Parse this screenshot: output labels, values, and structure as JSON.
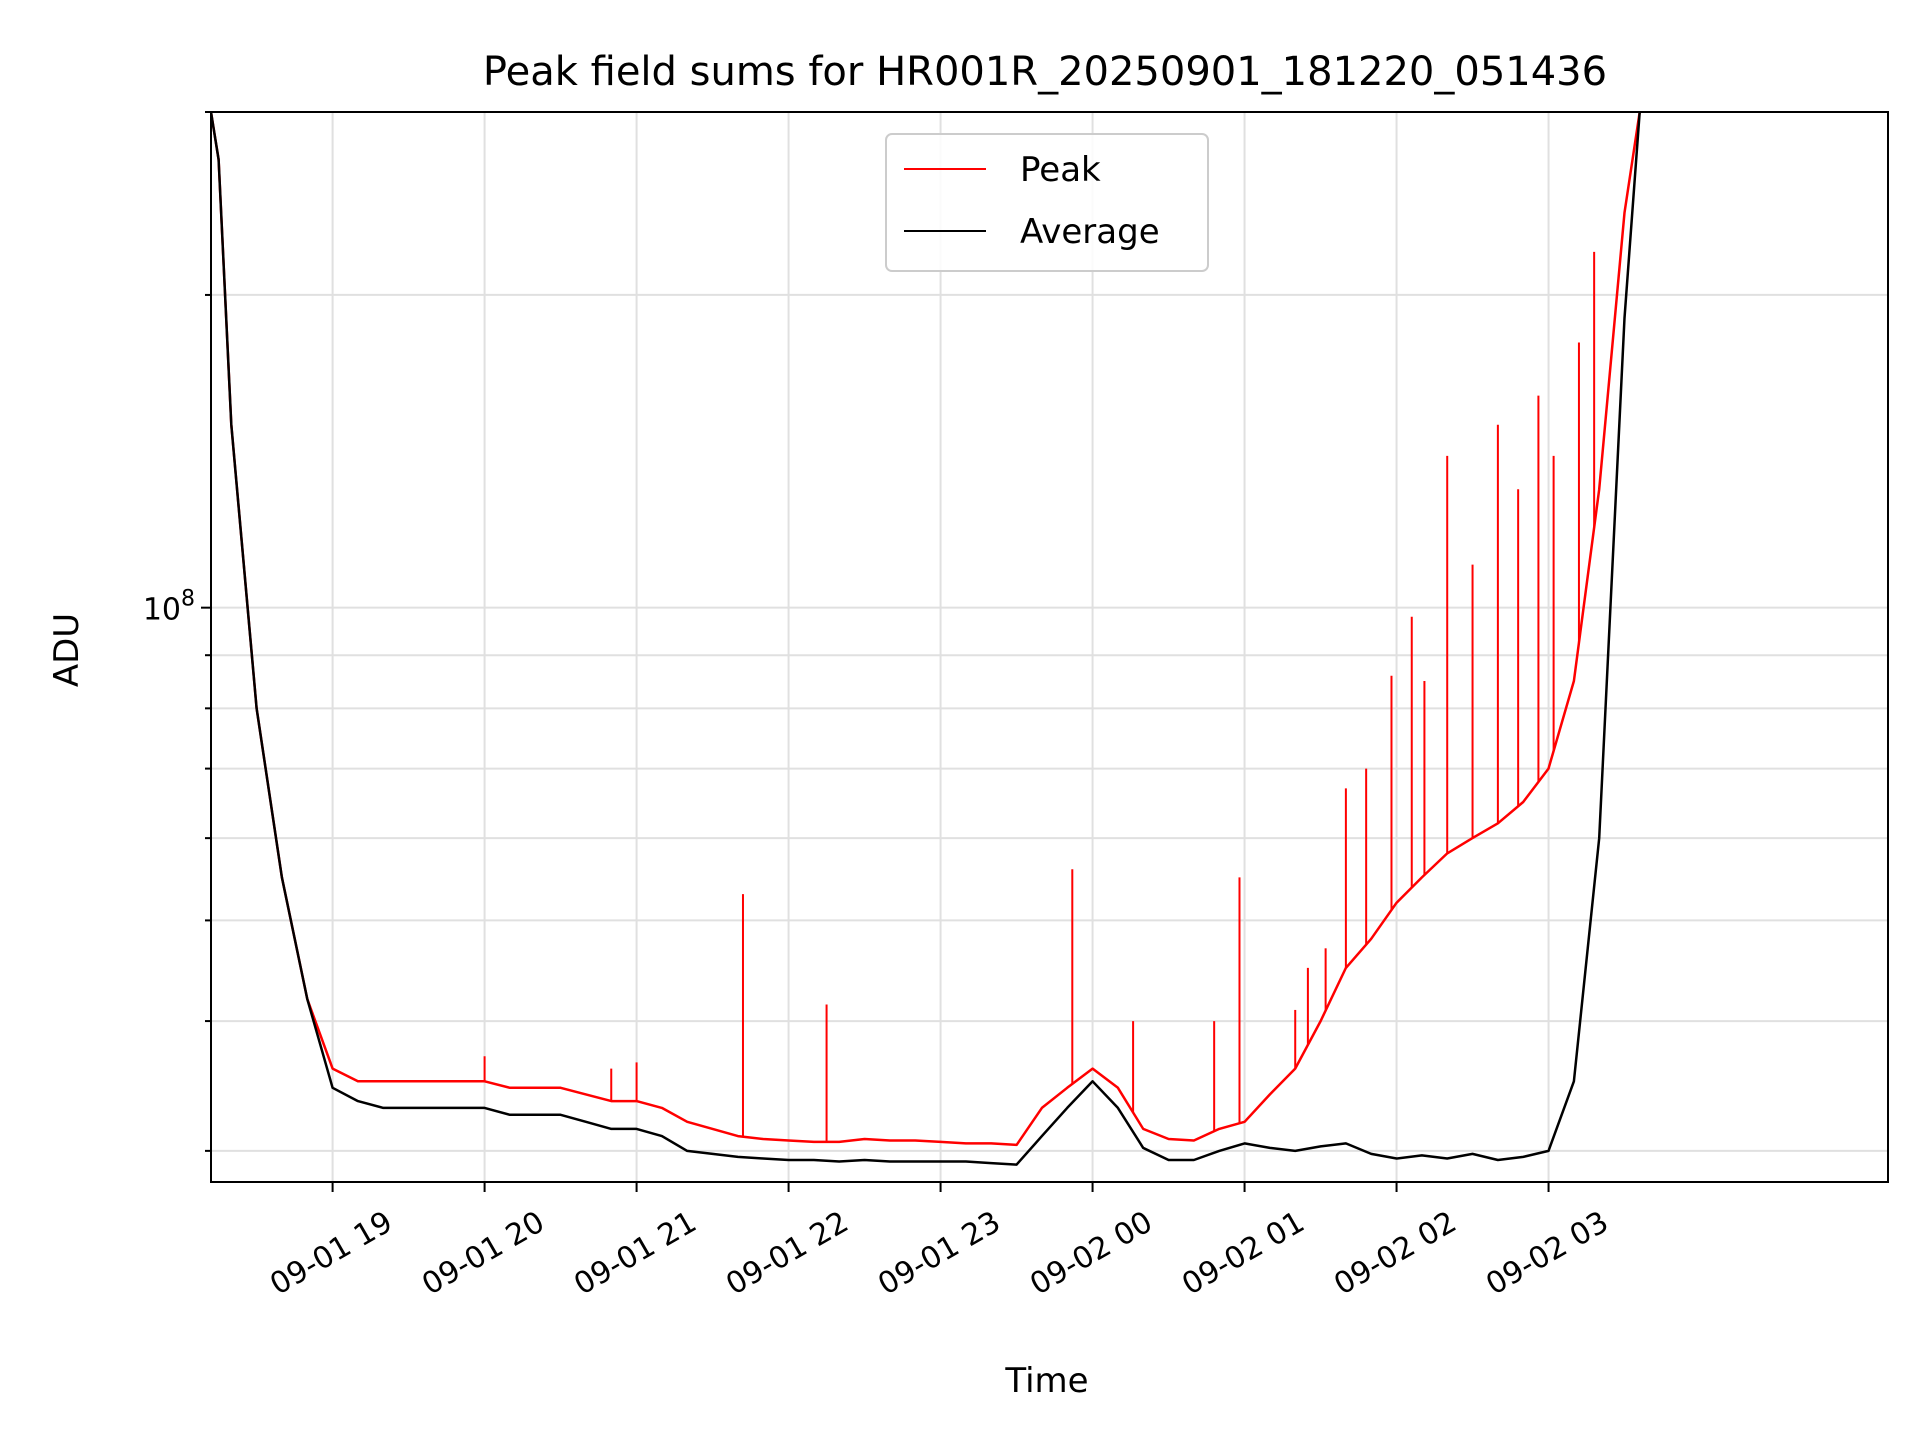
{
  "chart_data": {
    "type": "line",
    "title": "Peak field sums for HR001R_20250901_181220_051436",
    "xlabel": "Time",
    "ylabel": "ADU",
    "yscale": "log",
    "grid": true,
    "legend_position": "upper-center",
    "xlim": [
      "2025-09-01 18:12",
      "2025-09-02 05:14"
    ],
    "ylim": [
      28000000,
      300000000
    ],
    "x_ticks": [
      "09-01 19",
      "09-01 20",
      "09-01 21",
      "09-01 22",
      "09-01 23",
      "09-02 00",
      "09-02 01",
      "09-02 02",
      "09-02 03"
    ],
    "y_ticks": [
      {
        "value": 100000000,
        "base": "10",
        "exp": "8"
      }
    ],
    "series": [
      {
        "name": "Peak",
        "color": "#ff0000",
        "x": [
          "18:12",
          "18:15",
          "18:20",
          "18:30",
          "18:40",
          "18:50",
          "19:00",
          "19:10",
          "19:20",
          "19:30",
          "19:40",
          "19:50",
          "20:00",
          "20:10",
          "20:20",
          "20:30",
          "20:40",
          "20:50",
          "21:00",
          "21:10",
          "21:20",
          "21:30",
          "21:40",
          "21:50",
          "22:00",
          "22:10",
          "22:20",
          "22:30",
          "22:40",
          "22:50",
          "23:00",
          "23:10",
          "23:20",
          "23:30",
          "23:40",
          "23:50",
          "00:00",
          "00:10",
          "00:20",
          "00:30",
          "00:40",
          "00:50",
          "01:00",
          "01:10",
          "01:20",
          "01:30",
          "01:40",
          "01:50",
          "02:00",
          "02:10",
          "02:20",
          "02:30",
          "02:40",
          "02:50",
          "03:00",
          "03:10",
          "03:20",
          "03:30",
          "03:36"
        ],
        "values": [
          300000000,
          270000000,
          150000000,
          80000000,
          55000000,
          42000000,
          36000000,
          35000000,
          35000000,
          35000000,
          35000000,
          35000000,
          35000000,
          34500000,
          34500000,
          34500000,
          34000000,
          33500000,
          33500000,
          33000000,
          32000000,
          31500000,
          31000000,
          30800000,
          30700000,
          30600000,
          30600000,
          30800000,
          30700000,
          30700000,
          30600000,
          30500000,
          30500000,
          30400000,
          33000000,
          34500000,
          36000000,
          34500000,
          31500000,
          30800000,
          30700000,
          31500000,
          32000000,
          34000000,
          36000000,
          40000000,
          45000000,
          48000000,
          52000000,
          55000000,
          58000000,
          60000000,
          62000000,
          65000000,
          70000000,
          85000000,
          130000000,
          240000000,
          300000000
        ],
        "spikes": [
          {
            "x": "20:00",
            "value": 37000000
          },
          {
            "x": "20:50",
            "value": 36000000
          },
          {
            "x": "21:00",
            "value": 36500000
          },
          {
            "x": "21:42",
            "value": 53000000
          },
          {
            "x": "22:15",
            "value": 41500000
          },
          {
            "x": "23:52",
            "value": 56000000
          },
          {
            "x": "00:16",
            "value": 40000000
          },
          {
            "x": "00:48",
            "value": 40000000
          },
          {
            "x": "00:58",
            "value": 55000000
          },
          {
            "x": "01:20",
            "value": 41000000
          },
          {
            "x": "01:25",
            "value": 45000000
          },
          {
            "x": "01:32",
            "value": 47000000
          },
          {
            "x": "01:40",
            "value": 67000000
          },
          {
            "x": "01:48",
            "value": 70000000
          },
          {
            "x": "01:58",
            "value": 86000000
          },
          {
            "x": "02:06",
            "value": 98000000
          },
          {
            "x": "02:11",
            "value": 85000000
          },
          {
            "x": "02:20",
            "value": 140000000
          },
          {
            "x": "02:30",
            "value": 110000000
          },
          {
            "x": "02:40",
            "value": 150000000
          },
          {
            "x": "02:48",
            "value": 130000000
          },
          {
            "x": "02:56",
            "value": 160000000
          },
          {
            "x": "03:02",
            "value": 140000000
          },
          {
            "x": "03:12",
            "value": 180000000
          },
          {
            "x": "03:18",
            "value": 220000000
          }
        ]
      },
      {
        "name": "Average",
        "color": "#000000",
        "x": [
          "18:12",
          "18:15",
          "18:20",
          "18:30",
          "18:40",
          "18:50",
          "19:00",
          "19:10",
          "19:20",
          "19:30",
          "19:40",
          "19:50",
          "20:00",
          "20:10",
          "20:20",
          "20:30",
          "20:40",
          "20:50",
          "21:00",
          "21:10",
          "21:20",
          "21:30",
          "21:40",
          "21:50",
          "22:00",
          "22:10",
          "22:20",
          "22:30",
          "22:40",
          "22:50",
          "23:00",
          "23:10",
          "23:20",
          "23:30",
          "23:40",
          "23:50",
          "00:00",
          "00:10",
          "00:20",
          "00:30",
          "00:40",
          "00:50",
          "01:00",
          "01:10",
          "01:20",
          "01:30",
          "01:40",
          "01:50",
          "02:00",
          "02:10",
          "02:20",
          "02:30",
          "02:40",
          "02:50",
          "03:00",
          "03:10",
          "03:20",
          "03:30",
          "03:36"
        ],
        "values": [
          300000000,
          270000000,
          150000000,
          80000000,
          55000000,
          42000000,
          34500000,
          33500000,
          33000000,
          33000000,
          33000000,
          33000000,
          33000000,
          32500000,
          32500000,
          32500000,
          32000000,
          31500000,
          31500000,
          31000000,
          30000000,
          29800000,
          29600000,
          29500000,
          29400000,
          29400000,
          29300000,
          29400000,
          29300000,
          29300000,
          29300000,
          29300000,
          29200000,
          29100000,
          31000000,
          33000000,
          35000000,
          33000000,
          30200000,
          29400000,
          29400000,
          30000000,
          30500000,
          30200000,
          30000000,
          30300000,
          30500000,
          29800000,
          29500000,
          29700000,
          29500000,
          29800000,
          29400000,
          29600000,
          30000000,
          35000000,
          60000000,
          190000000,
          300000000
        ]
      }
    ]
  }
}
